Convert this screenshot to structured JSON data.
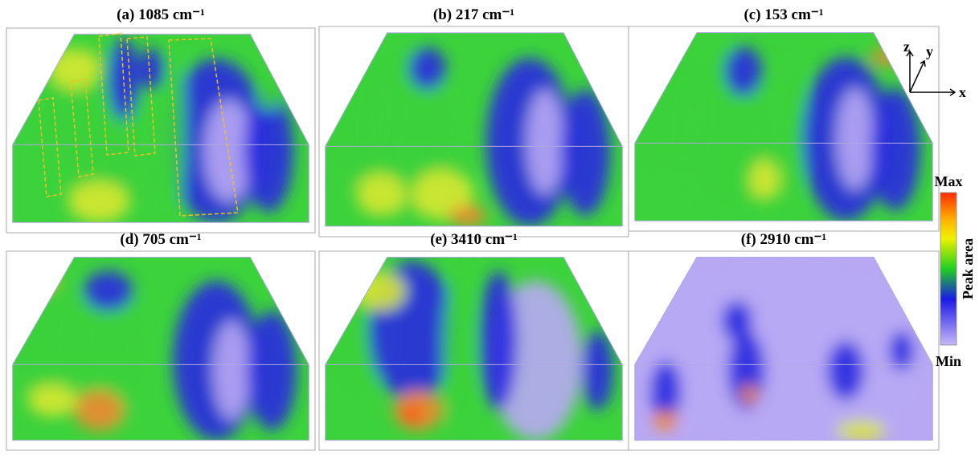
{
  "panels": [
    {
      "label": "(a) 1085 cm⁻¹"
    },
    {
      "label": "(b) 217 cm⁻¹"
    },
    {
      "label": "(c) 153 cm⁻¹"
    },
    {
      "label": "(d) 705 cm⁻¹"
    },
    {
      "label": "(e) 3410 cm⁻¹"
    },
    {
      "label": "(f) 2910 cm⁻¹"
    }
  ],
  "axes": {
    "x": "x",
    "y": "y",
    "z": "z"
  },
  "colorbar": {
    "max": "Max",
    "min": "Min",
    "label": "Peak area"
  }
}
